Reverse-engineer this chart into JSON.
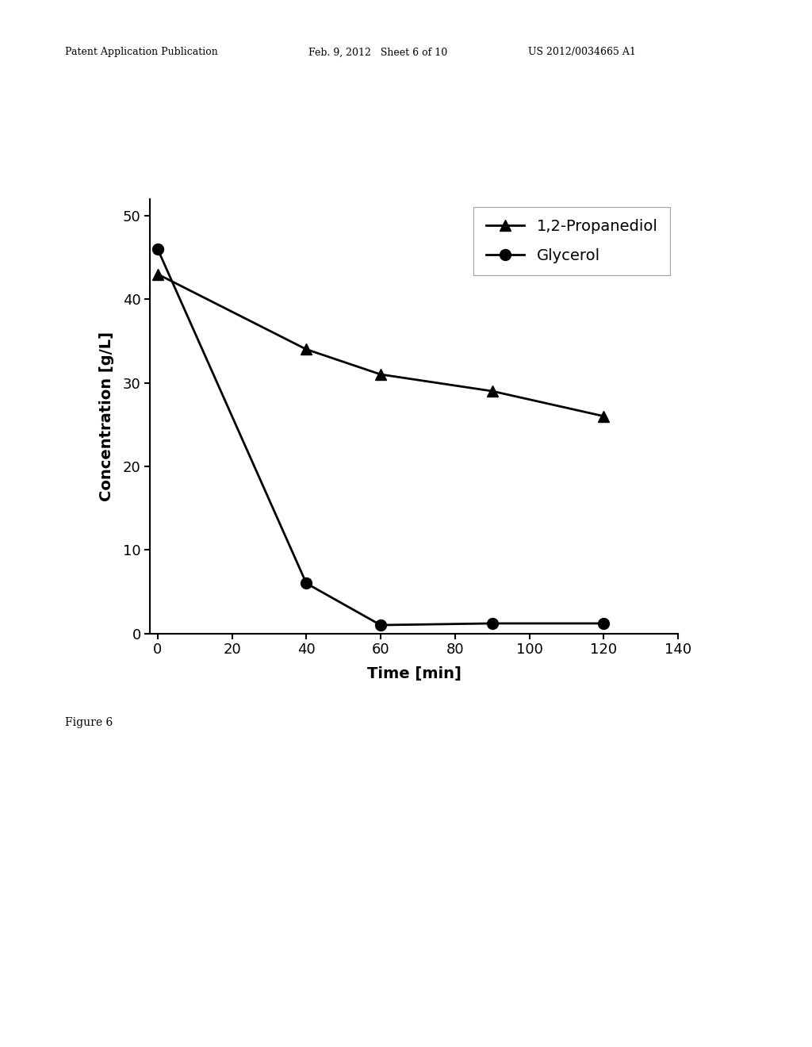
{
  "propanediol_x": [
    0,
    40,
    60,
    90,
    120
  ],
  "propanediol_y": [
    43,
    34,
    31,
    29,
    26
  ],
  "glycerol_x": [
    0,
    40,
    60,
    90,
    120
  ],
  "glycerol_y": [
    46,
    6,
    1,
    1.2,
    1.2
  ],
  "propanediol_label": "1,2-Propanediol",
  "glycerol_label": "Glycerol",
  "xlabel": "Time [min]",
  "ylabel": "Concentration [g/L]",
  "xlim": [
    -2,
    140
  ],
  "ylim": [
    0,
    52
  ],
  "xticks": [
    0,
    20,
    40,
    60,
    80,
    100,
    120,
    140
  ],
  "yticks": [
    0,
    10,
    20,
    30,
    40,
    50
  ],
  "line_color": "#000000",
  "marker_triangle": "^",
  "marker_circle": "o",
  "marker_size": 10,
  "line_width": 2.0,
  "background_color": "#ffffff",
  "header_left": "Patent Application Publication",
  "header_mid": "Feb. 9, 2012   Sheet 6 of 10",
  "header_right": "US 2012/0034665 A1",
  "figure_caption": "Figure 6",
  "axis_fontsize": 14,
  "tick_fontsize": 13,
  "legend_fontsize": 14
}
